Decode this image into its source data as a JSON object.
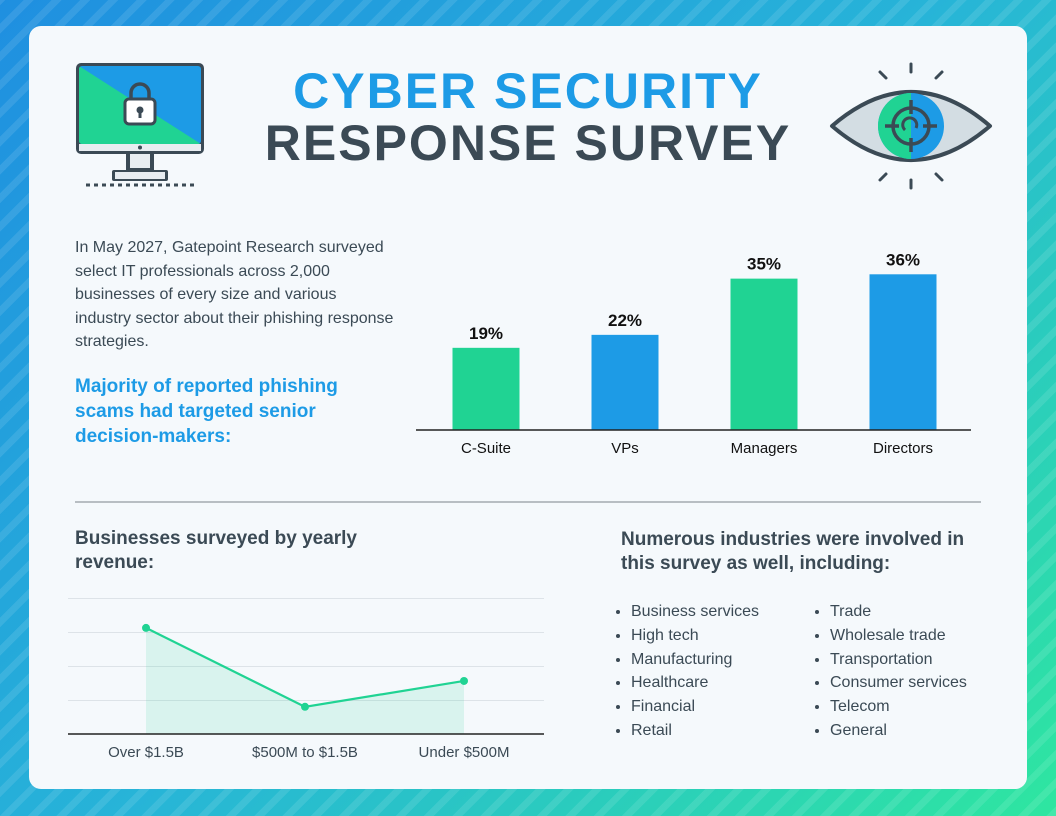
{
  "header": {
    "title_line1": "CYBER SECURITY",
    "title_line2": "RESPONSE SURVEY"
  },
  "icons": {
    "left": "computer-lock-icon",
    "right": "eye-target-icon"
  },
  "intro": {
    "text": "In May 2027, Gatepoint Research surveyed select IT professionals across 2,000 businesses of every size and various industry sector about their phishing response strategies.",
    "highlight": "Majority of reported phishing scams had targeted senior decision-makers:"
  },
  "revenue": {
    "title": "Businesses surveyed by yearly revenue:"
  },
  "industries": {
    "title": "Numerous industries were involved in this survey as well, including:",
    "col1": [
      "Business services",
      "High tech",
      "Manufacturing",
      "Healthcare",
      "Financial",
      "Retail"
    ],
    "col2": [
      "Trade",
      "Wholesale trade",
      "Transportation",
      "Consumer services",
      "Telecom",
      "General"
    ]
  },
  "colors": {
    "green": "#20d393",
    "blue": "#1d9be6",
    "dark": "#3b4a55"
  },
  "chart_data": [
    {
      "type": "bar",
      "categories": [
        "C-Suite",
        "VPs",
        "Managers",
        "Directors"
      ],
      "values": [
        19,
        22,
        35,
        36
      ],
      "value_labels": [
        "19%",
        "22%",
        "35%",
        "36%"
      ],
      "bar_colors": [
        "#20d393",
        "#1d9be6",
        "#20d393",
        "#1d9be6"
      ],
      "ylim": [
        0,
        40
      ],
      "grid": false
    },
    {
      "type": "area",
      "categories": [
        "Over $1.5B",
        "$500M to $1.5B",
        "Under $500M"
      ],
      "values": [
        0.78,
        0.2,
        0.39
      ],
      "ylim": [
        0,
        1
      ],
      "grid": true,
      "color": "#20d393"
    }
  ]
}
